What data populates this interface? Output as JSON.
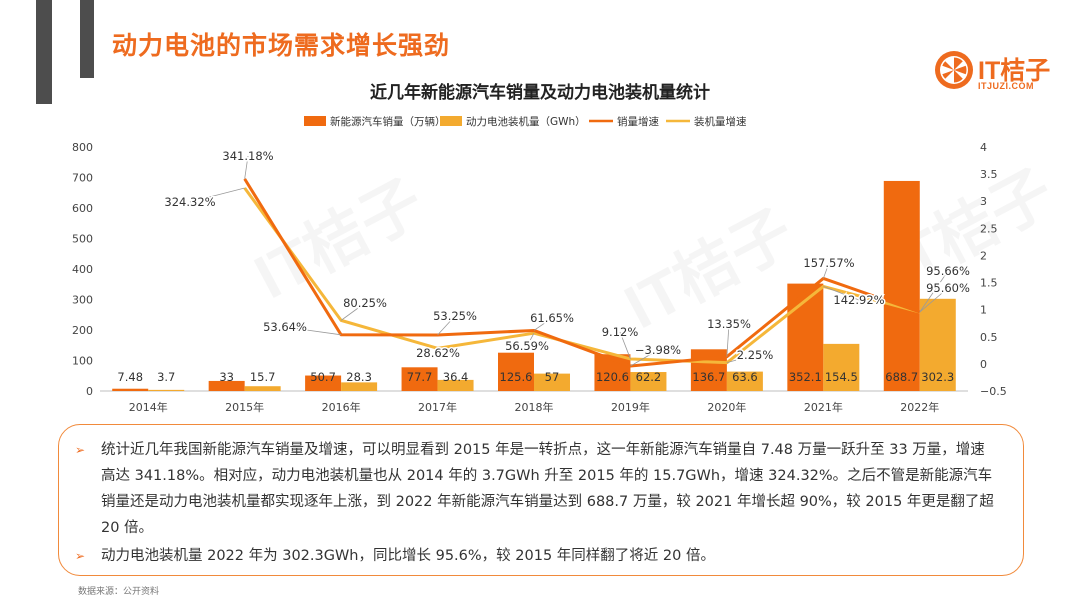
{
  "colors": {
    "brand": "#ee6b1f",
    "sales_bar": "#f06a0f",
    "battery_bar": "#f3aa2f",
    "sales_line": "#f06a0f",
    "battery_line": "#f5b73a",
    "border": "#f18a3b"
  },
  "header": {
    "title": "动力电池的市场需求增长强劲"
  },
  "logo": {
    "name": "IT桔子",
    "url": "ITJUZI.COM",
    "icon": "orange-slice-icon"
  },
  "chart_data": {
    "type": "bar",
    "title": "近几年新能源汽车销量及动力电池装机量统计",
    "categories": [
      "2014年",
      "2015年",
      "2016年",
      "2017年",
      "2018年",
      "2019年",
      "2020年",
      "2021年",
      "2022年"
    ],
    "series": [
      {
        "name": "新能源汽车销量（万辆）",
        "type": "bar",
        "axis": "left",
        "values": [
          7.48,
          33,
          50.7,
          77.7,
          125.6,
          120.6,
          136.7,
          352.1,
          688.7
        ],
        "labels": [
          "7.48",
          "33",
          "50.7",
          "77.7",
          "125.6",
          "120.6",
          "136.7",
          "352.1",
          "688.7"
        ]
      },
      {
        "name": "动力电池装机量（GWh）",
        "type": "bar",
        "axis": "left",
        "values": [
          3.7,
          15.7,
          28.3,
          36.4,
          57,
          62.2,
          63.6,
          154.5,
          302.3
        ],
        "labels": [
          "3.7",
          "15.7",
          "28.3",
          "36.4",
          "57",
          "62.2",
          "63.6",
          "154.5",
          "302.3"
        ]
      },
      {
        "name": "销量增速",
        "type": "line",
        "axis": "right",
        "values": [
          null,
          3.4118,
          0.5364,
          0.5325,
          0.6165,
          -0.0398,
          0.1335,
          1.5757,
          0.9566
        ],
        "labels": [
          "",
          "341.18%",
          "53.64%",
          "53.25%",
          "61.65%",
          "−3.98%",
          "13.35%",
          "157.57%",
          "95.66%"
        ]
      },
      {
        "name": "装机量增速",
        "type": "line",
        "axis": "right",
        "values": [
          null,
          3.2432,
          0.8025,
          0.2862,
          0.5659,
          0.0912,
          0.0225,
          1.4292,
          0.956
        ],
        "labels": [
          "",
          "324.32%",
          "80.25%",
          "28.62%",
          "56.59%",
          "9.12%",
          "2.25%",
          "142.92%",
          "95.60%"
        ]
      }
    ],
    "y_left": {
      "min": 0,
      "max": 800,
      "ticks": [
        "0",
        "100",
        "200",
        "300",
        "400",
        "500",
        "600",
        "700",
        "800"
      ]
    },
    "y_right": {
      "min": -0.5,
      "max": 4,
      "ticks": [
        "−0.5",
        "0",
        "0.5",
        "1",
        "1.5",
        "2",
        "2.5",
        "3",
        "3.5",
        "4"
      ]
    },
    "legend_position": "top",
    "grid": false
  },
  "summary": {
    "items": [
      "统计近几年我国新能源汽车销量及增速，可以明显看到 2015 年是一转折点，这一年新能源汽车销量自 7.48 万量一跃升至 33 万量，增速高达 341.18%。相对应，动力电池装机量也从 2014 年的 3.7GWh 升至 2015 年的 15.7GWh，增速 324.32%。之后不管是新能源汽车销量还是动力电池装机量都实现逐年上涨，到 2022 年新能源汽车销量达到 688.7 万量，较 2021 年增长超 90%，较 2015 年更是翻了超 20 倍。",
      "动力电池装机量 2022 年为 302.3GWh，同比增长 95.6%，较 2015 年同样翻了将近 20 倍。"
    ],
    "bullet": "➢"
  },
  "footer": {
    "source": "数据来源：公开资料"
  }
}
